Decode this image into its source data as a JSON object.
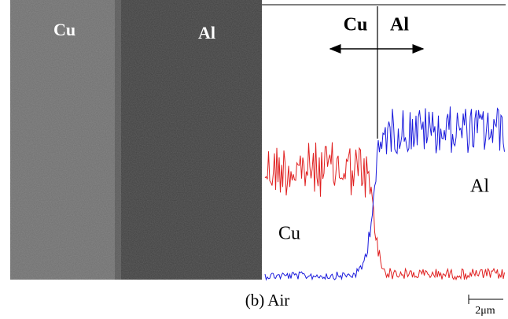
{
  "figure": {
    "image": {
      "left_label": "Cu",
      "right_label": "Al"
    },
    "line_scan": {
      "header_left": "Cu",
      "header_right": "Al",
      "upper_curve_label": "Al",
      "lower_curve_label": "Cu"
    },
    "caption": "(b) Air",
    "scale_bar": "2μm"
  }
}
